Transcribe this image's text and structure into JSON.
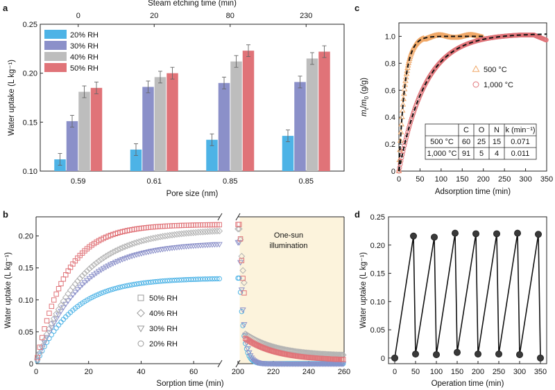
{
  "chart_data": [
    {
      "panel": "a",
      "type": "bar",
      "xlabel": "Pore size (nm)",
      "ylabel": "Water uptake (L kg⁻¹)",
      "top_xlabel": "Steam etching time (min)",
      "categories": [
        "0.59",
        "0.61",
        "0.85",
        "0.85"
      ],
      "top_categories": [
        "0",
        "20",
        "80",
        "230"
      ],
      "ylim": [
        0.1,
        0.25
      ],
      "yticks": [
        "0.10",
        "0.15",
        "0.20",
        "0.25"
      ],
      "legend_placement": "top-left",
      "series": [
        {
          "name": "20% RH",
          "color": "#4db3e6",
          "values": [
            0.112,
            0.122,
            0.132,
            0.136
          ],
          "errors": [
            0.006,
            0.006,
            0.006,
            0.006
          ]
        },
        {
          "name": "30% RH",
          "color": "#8b90c9",
          "values": [
            0.151,
            0.186,
            0.19,
            0.191
          ],
          "errors": [
            0.006,
            0.006,
            0.006,
            0.006
          ]
        },
        {
          "name": "40% RH",
          "color": "#bdbdbd",
          "values": [
            0.181,
            0.196,
            0.212,
            0.215
          ],
          "errors": [
            0.006,
            0.006,
            0.006,
            0.006
          ]
        },
        {
          "name": "50% RH",
          "color": "#e07378",
          "values": [
            0.185,
            0.2,
            0.223,
            0.222
          ],
          "errors": [
            0.006,
            0.006,
            0.006,
            0.006
          ]
        }
      ]
    },
    {
      "panel": "b",
      "type": "scatter",
      "xlabel": "Sorption time (min)",
      "ylabel": "Water uptake (L kg⁻¹)",
      "xticks": [
        "0",
        "20",
        "40",
        "60",
        "200",
        "220",
        "240",
        "260"
      ],
      "yticks": [
        "0",
        "0.05",
        "0.10",
        "0.15",
        "0.20"
      ],
      "x_segments": [
        [
          0,
          70
        ],
        [
          200,
          260
        ]
      ],
      "ylim": [
        0,
        0.23
      ],
      "annotation": [
        "One-sun",
        "illumination"
      ],
      "annotation_color": "#fcf3dc",
      "legend_placement": "bottom-center",
      "series": [
        {
          "name": "50% RH",
          "marker": "square",
          "color": "#e07378",
          "plateau": 0.218,
          "rate": 0.09,
          "end_value": 0.005
        },
        {
          "name": "40% RH",
          "marker": "diamond",
          "color": "#b3b3b3",
          "plateau": 0.211,
          "rate": 0.06,
          "end_value": 0.012
        },
        {
          "name": "30% RH",
          "marker": "triangle",
          "color": "#8b90c9",
          "plateau": 0.19,
          "rate": 0.06,
          "end_value": 0.0
        },
        {
          "name": "20% RH",
          "marker": "circle",
          "color": "#4db3e6",
          "plateau": 0.134,
          "rate": 0.07,
          "end_value": 0.0
        }
      ]
    },
    {
      "panel": "c",
      "type": "scatter",
      "xlabel": "Adsorption time (min)",
      "ylabel": "m_t/m_0 (g/g)",
      "ylabel_parts": [
        "m",
        "t",
        "/",
        "m",
        "0",
        " (g/g)"
      ],
      "xlim": [
        0,
        350
      ],
      "ylim": [
        0,
        1.1
      ],
      "xticks": [
        "0",
        "50",
        "100",
        "150",
        "200",
        "250",
        "300",
        "350"
      ],
      "yticks": [
        "0",
        "0.2",
        "0.4",
        "0.6",
        "0.8",
        "1.0"
      ],
      "legend_placement": "right",
      "series": [
        {
          "name": "500 °C",
          "marker": "triangle",
          "color": "#f0a868",
          "k": 0.071,
          "t_end": 200
        },
        {
          "name": "1,000 °C",
          "marker": "circle",
          "color": "#e07378",
          "k": 0.011,
          "t_end": 350
        }
      ],
      "table": {
        "header": [
          "",
          "C",
          "O",
          "N",
          "k (min⁻¹)"
        ],
        "rows": [
          [
            "500 °C",
            "60",
            "25",
            "15",
            "0.071"
          ],
          [
            "1,000 °C",
            "91",
            "5",
            "4",
            "0.011"
          ]
        ]
      }
    },
    {
      "panel": "d",
      "type": "line",
      "xlabel": "Operation time (min)",
      "ylabel": "Water uptake (L kg⁻¹)",
      "xlim": [
        -15,
        365
      ],
      "ylim": [
        -0.01,
        0.25
      ],
      "xticks": [
        "0",
        "50",
        "100",
        "150",
        "200",
        "250",
        "300",
        "350"
      ],
      "yticks": [
        "0",
        "0.05",
        "0.10",
        "0.15",
        "0.20",
        "0.25"
      ],
      "x": [
        0,
        45,
        50,
        95,
        100,
        145,
        150,
        195,
        200,
        245,
        250,
        295,
        300,
        345,
        350
      ],
      "y": [
        0.0,
        0.216,
        0.007,
        0.214,
        0.006,
        0.221,
        0.01,
        0.22,
        0.007,
        0.22,
        0.007,
        0.221,
        0.006,
        0.219,
        0.0
      ]
    }
  ]
}
